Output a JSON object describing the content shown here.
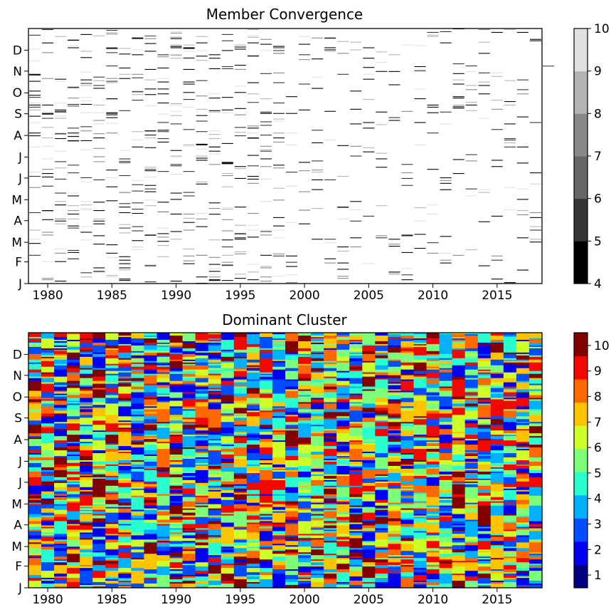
{
  "chart_data": [
    {
      "type": "heatmap",
      "title": "Member Convergence",
      "x_ticks": [
        "1980",
        "1985",
        "1990",
        "1995",
        "2000",
        "2005",
        "2010",
        "2015"
      ],
      "xlim": [
        1979,
        2019
      ],
      "y_ticks": [
        "J",
        "F",
        "M",
        "A",
        "M",
        "J",
        "J",
        "A",
        "S",
        "O",
        "N",
        "D"
      ],
      "ylim": [
        1,
        366
      ],
      "colorbar": {
        "ticks": [
          "4",
          "5",
          "6",
          "7",
          "8",
          "9",
          "10"
        ],
        "range": [
          4,
          10
        ],
        "colors": [
          "#000000",
          "#333333",
          "#666666",
          "#888888",
          "#b4b4b4",
          "#e0e0e0"
        ]
      },
      "sampled_cells": [
        {
          "year": 1980,
          "day": 345,
          "value": 5
        },
        {
          "year": 1982,
          "day": 349,
          "value": 4
        },
        {
          "year": 1985,
          "day": 337,
          "value": 5
        },
        {
          "year": 1988,
          "day": 355,
          "value": 6
        },
        {
          "year": 1990,
          "day": 340,
          "value": 5
        },
        {
          "year": 1981,
          "day": 215,
          "value": 5
        },
        {
          "year": 1982,
          "day": 205,
          "value": 4
        },
        {
          "year": 1986,
          "day": 175,
          "value": 5
        },
        {
          "year": 1988,
          "day": 70,
          "value": 4
        },
        {
          "year": 1993,
          "day": 100,
          "value": 5
        },
        {
          "year": 1996,
          "day": 260,
          "value": 6
        },
        {
          "year": 2001,
          "day": 280,
          "value": 5
        },
        {
          "year": 2003,
          "day": 110,
          "value": 4
        },
        {
          "year": 2005,
          "day": 310,
          "value": 5
        },
        {
          "year": 2011,
          "day": 135,
          "value": 5
        },
        {
          "year": 2012,
          "day": 252,
          "value": 4
        },
        {
          "year": 2017,
          "day": 20,
          "value": 5
        },
        {
          "year": 2019,
          "day": 312,
          "value": 6
        }
      ],
      "dominant_value": 10
    },
    {
      "type": "heatmap",
      "title": "Dominant Cluster",
      "x_ticks": [
        "1980",
        "1985",
        "1990",
        "1995",
        "2000",
        "2005",
        "2010",
        "2015"
      ],
      "xlim": [
        1979,
        2019
      ],
      "y_ticks": [
        "J",
        "F",
        "M",
        "A",
        "M",
        "J",
        "J",
        "A",
        "S",
        "O",
        "N",
        "D"
      ],
      "ylim": [
        1,
        366
      ],
      "colorbar": {
        "ticks": [
          "1",
          "2",
          "3",
          "4",
          "5",
          "6",
          "7",
          "8",
          "9",
          "10"
        ],
        "range": [
          0.5,
          10.5
        ],
        "colors": [
          "#000080",
          "#0000f1",
          "#004dff",
          "#00b1ff",
          "#29ffce",
          "#7dff7a",
          "#ceff29",
          "#ffc400",
          "#ff6800",
          "#f10800",
          "#800000"
        ]
      },
      "values_note": "",
      "value_range": [
        1,
        10
      ]
    }
  ]
}
